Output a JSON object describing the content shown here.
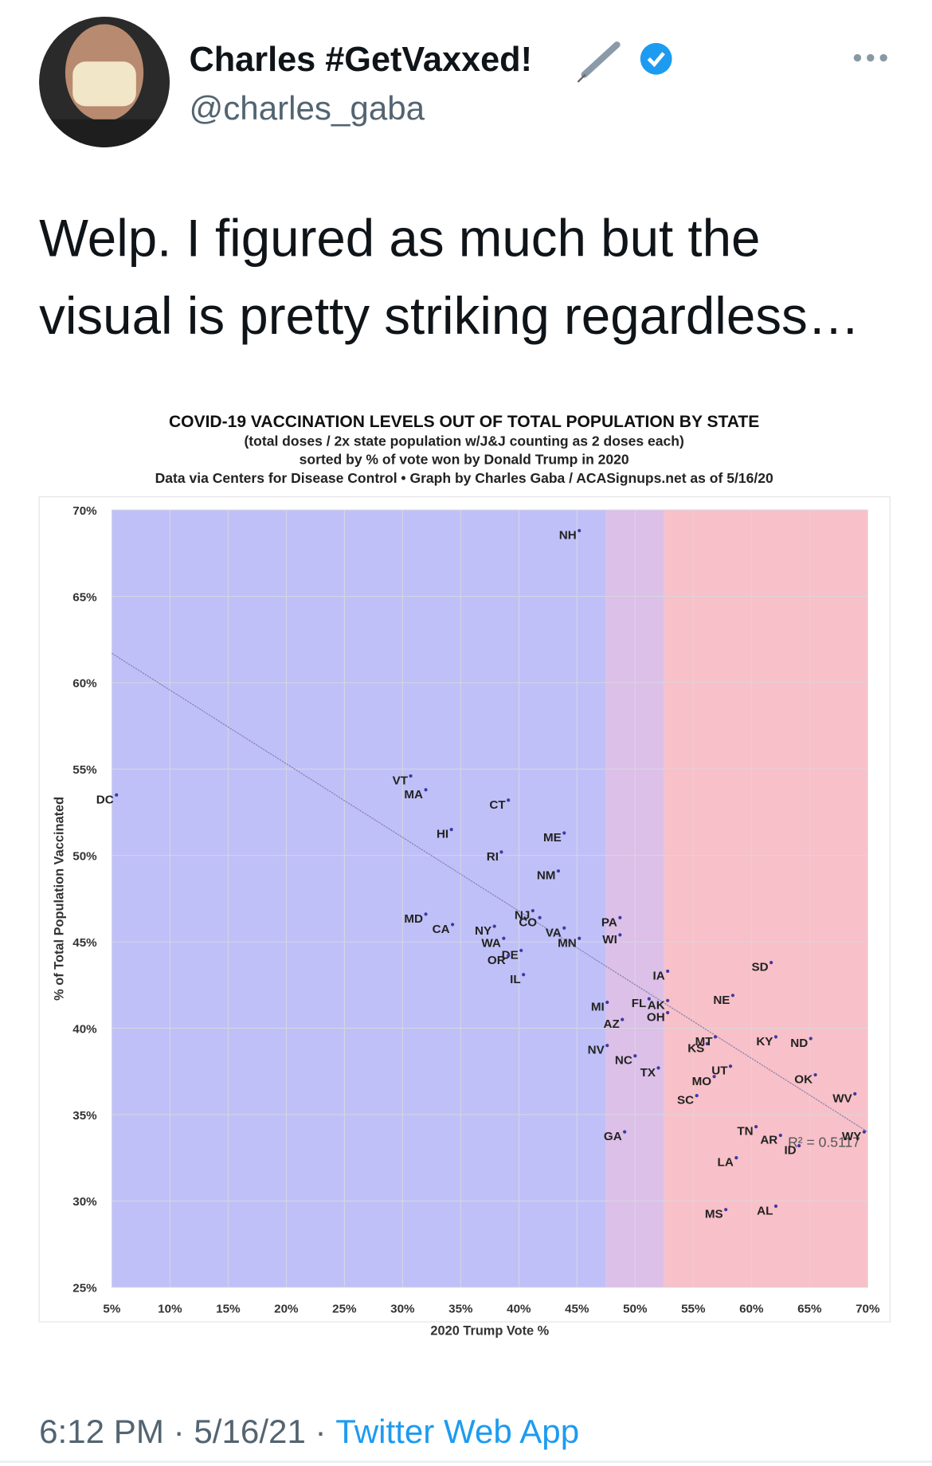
{
  "tweet": {
    "name": "Charles #GetVaxxed!",
    "handle": "@charles_gaba",
    "text": [
      "Welp. I figured as much but the",
      "visual is pretty striking regardless…"
    ],
    "time": "6:12 PM · 5/16/21 ·",
    "source": "Twitter Web App"
  },
  "chart_data": {
    "type": "scatter",
    "title": "COVID-19 VACCINATION LEVELS OUT OF TOTAL POPULATION BY STATE",
    "subtitle": [
      "(total doses / 2x state population w/J&J counting as 2 doses each)",
      "sorted by % of vote won by Donald Trump in 2020",
      "Data via Centers for Disease Control • Graph by Charles Gaba / ACASignups.net as of 5/16/20"
    ],
    "x_label": "2020 Trump Vote %",
    "y_label": "% of Total Population Vaccinated",
    "xlim": [
      5,
      70
    ],
    "ylim": [
      25,
      70
    ],
    "xticks": [
      {
        "value": 5,
        "label": "5%"
      },
      {
        "value": 10,
        "label": "10%"
      },
      {
        "value": 15,
        "label": "15%"
      },
      {
        "value": 20,
        "label": "20%"
      },
      {
        "value": 25,
        "label": "25%"
      },
      {
        "value": 30,
        "label": "30%"
      },
      {
        "value": 35,
        "label": "35%"
      },
      {
        "value": 40,
        "label": "40%"
      },
      {
        "value": 45,
        "label": "45%"
      },
      {
        "value": 50,
        "label": "50%"
      },
      {
        "value": 55,
        "label": "55%"
      },
      {
        "value": 60,
        "label": "60%"
      },
      {
        "value": 65,
        "label": "65%"
      },
      {
        "value": 70,
        "label": "70%"
      }
    ],
    "yticks": [
      {
        "value": 25,
        "label": "25%"
      },
      {
        "value": 30,
        "label": "30%"
      },
      {
        "value": 35,
        "label": "35%"
      },
      {
        "value": 40,
        "label": "40%"
      },
      {
        "value": 45,
        "label": "45%"
      },
      {
        "value": 50,
        "label": "50%"
      },
      {
        "value": 55,
        "label": "55%"
      },
      {
        "value": 60,
        "label": "60%"
      },
      {
        "value": 65,
        "label": "65%"
      },
      {
        "value": 70,
        "label": "70%"
      }
    ],
    "grid": true,
    "regions": [
      {
        "from": 5,
        "to": 47.5,
        "color": "#c0c0f8"
      },
      {
        "from": 47.5,
        "to": 52.5,
        "color": "#dcc0e8"
      },
      {
        "from": 52.5,
        "to": 70,
        "color": "#f8c0c8"
      }
    ],
    "color": "#3a3aa8",
    "labels": [
      "DC",
      "VT",
      "MA",
      "CT",
      "HI",
      "ME",
      "RI",
      "NM",
      "NH",
      "MD",
      "CA",
      "NY",
      "NJ",
      "CO",
      "VA",
      "WA",
      "DE",
      "OR",
      "IL",
      "MN",
      "PA",
      "WI",
      "MI",
      "AZ",
      "NV",
      "NC",
      "FL",
      "TX",
      "IA",
      "AK",
      "OH",
      "KS",
      "MT",
      "MO",
      "SC",
      "UT",
      "NE",
      "SD",
      "KY",
      "ND",
      "OK",
      "WV",
      "WY",
      "ID",
      "TN",
      "AR",
      "LA",
      "MS",
      "AL",
      "GA"
    ],
    "x": [
      5.4,
      30.7,
      32.0,
      39.1,
      34.2,
      43.9,
      38.5,
      43.4,
      45.2,
      32.0,
      34.3,
      37.9,
      41.2,
      41.8,
      43.9,
      38.7,
      40.2,
      39.1,
      40.4,
      45.2,
      48.7,
      48.7,
      47.6,
      48.9,
      47.6,
      50.0,
      51.2,
      52.0,
      52.8,
      52.8,
      52.8,
      56.2,
      56.9,
      56.8,
      55.3,
      58.2,
      58.4,
      61.7,
      62.1,
      65.1,
      65.5,
      68.9,
      69.7,
      64.1,
      60.4,
      62.5,
      58.7,
      57.8,
      62.1,
      49.1
    ],
    "values": [
      53.5,
      54.6,
      53.8,
      53.2,
      51.5,
      51.3,
      50.2,
      49.1,
      68.8,
      46.6,
      46.0,
      45.9,
      46.8,
      46.4,
      45.8,
      45.2,
      44.5,
      44.2,
      43.1,
      45.2,
      46.4,
      45.4,
      41.5,
      40.5,
      39.0,
      38.4,
      41.7,
      37.7,
      43.3,
      41.6,
      40.9,
      39.1,
      39.5,
      37.2,
      36.1,
      37.8,
      41.9,
      43.8,
      39.5,
      39.4,
      37.3,
      36.2,
      34.0,
      33.2,
      34.3,
      33.8,
      32.5,
      29.5,
      29.7,
      34.0
    ],
    "trendline": {
      "x": [
        5,
        70
      ],
      "values": [
        61.7,
        34.0
      ],
      "label": "R² = 0.5117",
      "color": "#8080b0"
    }
  }
}
